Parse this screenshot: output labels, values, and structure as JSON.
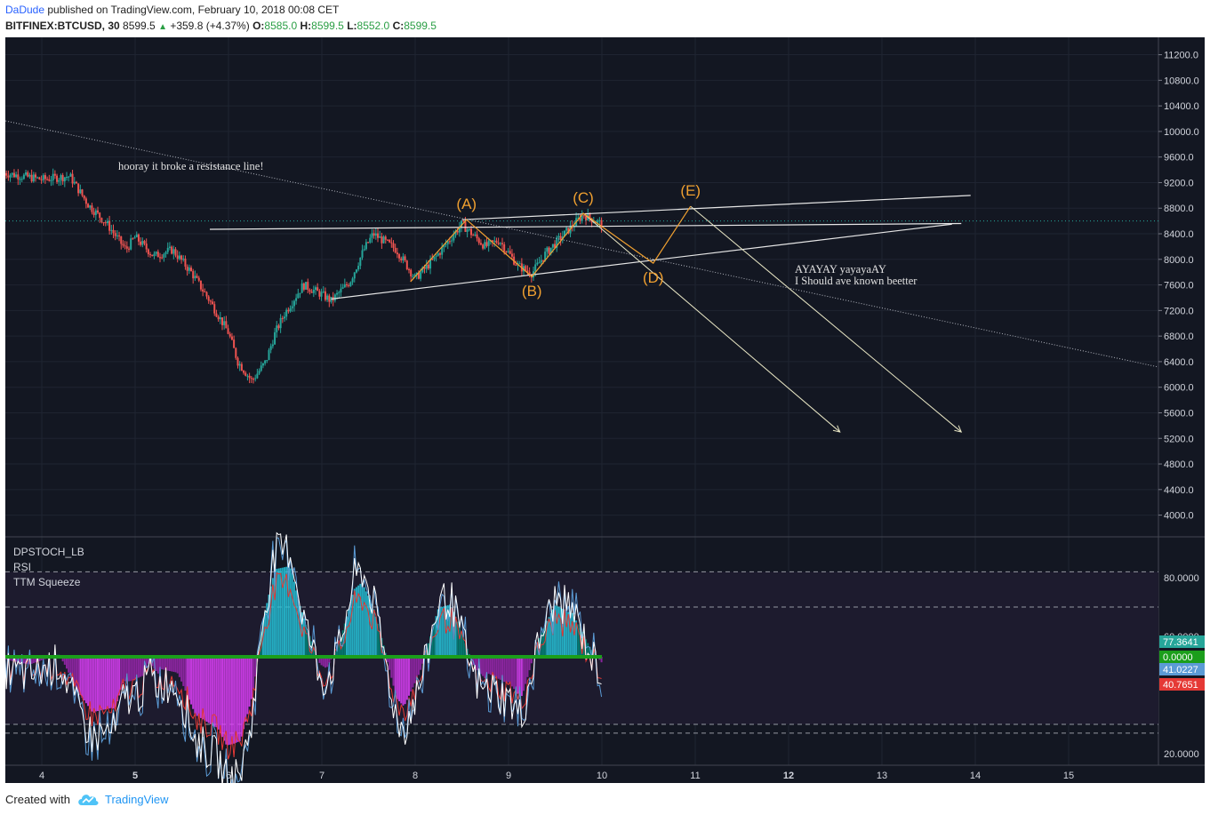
{
  "header": {
    "author": "DaDude",
    "published": "published on TradingView.com, February 10, 2018 00:08 CET",
    "symbol": "BITFINEX:BTCUSD, 30",
    "last": "8599.5",
    "change": "+359.8 (+4.37%)",
    "o_label": "O:",
    "o_value": "8585.0",
    "h_label": "H:",
    "h_value": "8599.5",
    "l_label": "L:",
    "l_value": "8552.0",
    "c_label": "C:",
    "c_value": "8599.5",
    "up_color": "#2a9e44"
  },
  "footer": {
    "created_with": "Created with",
    "brand": "TradingView"
  },
  "indicators": {
    "labels": [
      "DPSTOCH_LB",
      "RSI",
      "TTM Squeeze"
    ],
    "price_tags": [
      {
        "text": "77.3641",
        "color": "#26a69a"
      },
      {
        "text": "0.0000",
        "color": "#1b9e1b"
      },
      {
        "text": "41.0227",
        "color": "#5b9bd5"
      },
      {
        "text": "40.7651",
        "color": "#e53935"
      }
    ]
  },
  "chart_data": {
    "type": "candlestick",
    "symbol": "BITFINEX:BTCUSD",
    "interval": "30",
    "x_axis": {
      "ticks": [
        "4",
        "5",
        "6",
        "7",
        "8",
        "9",
        "10",
        "11",
        "12",
        "13",
        "14",
        "15"
      ],
      "bold_ticks": [
        "5",
        "12"
      ]
    },
    "y_axis": {
      "range": [
        3700,
        11500
      ],
      "ticks": [
        "11200.0",
        "10800.0",
        "10400.0",
        "10000.0",
        "9600.0",
        "9200.0",
        "8800.0",
        "8400.0",
        "8000.0",
        "7600.0",
        "7200.0",
        "6800.0",
        "6400.0",
        "6000.0",
        "5600.0",
        "5200.0",
        "4800.0",
        "4400.0",
        "4000.0"
      ]
    },
    "price_path": [
      [
        3.6,
        9350
      ],
      [
        4.0,
        9250
      ],
      [
        4.3,
        9300
      ],
      [
        4.5,
        8850
      ],
      [
        4.7,
        8550
      ],
      [
        4.9,
        8150
      ],
      [
        5.0,
        8350
      ],
      [
        5.2,
        8050
      ],
      [
        5.4,
        8150
      ],
      [
        5.6,
        7800
      ],
      [
        5.8,
        7350
      ],
      [
        6.0,
        6850
      ],
      [
        6.1,
        6400
      ],
      [
        6.25,
        6100
      ],
      [
        6.4,
        6400
      ],
      [
        6.5,
        6850
      ],
      [
        6.6,
        7150
      ],
      [
        6.8,
        7600
      ],
      [
        7.0,
        7450
      ],
      [
        7.1,
        7350
      ],
      [
        7.3,
        7650
      ],
      [
        7.45,
        8150
      ],
      [
        7.55,
        8400
      ],
      [
        7.8,
        8150
      ],
      [
        8.0,
        7700
      ],
      [
        8.2,
        8000
      ],
      [
        8.5,
        8550
      ],
      [
        8.75,
        8200
      ],
      [
        8.9,
        8300
      ],
      [
        9.1,
        7900
      ],
      [
        9.25,
        7780
      ],
      [
        9.4,
        8100
      ],
      [
        9.6,
        8400
      ],
      [
        9.8,
        8700
      ],
      [
        10.0,
        8550
      ]
    ],
    "sample_candles": [
      {
        "x": 4.25,
        "o": 9300,
        "h": 9450,
        "l": 9150,
        "c": 9200
      },
      {
        "x": 5.0,
        "o": 8250,
        "h": 8450,
        "l": 8100,
        "c": 8350
      },
      {
        "x": 5.5,
        "o": 7900,
        "h": 8100,
        "l": 7750,
        "c": 7850
      },
      {
        "x": 6.25,
        "o": 6200,
        "h": 6350,
        "l": 6000,
        "c": 6100
      },
      {
        "x": 6.7,
        "o": 7200,
        "h": 7450,
        "l": 7050,
        "c": 7400
      },
      {
        "x": 7.55,
        "o": 8300,
        "h": 8500,
        "l": 8150,
        "c": 8400
      },
      {
        "x": 8.5,
        "o": 8450,
        "h": 8650,
        "l": 8350,
        "c": 8550
      },
      {
        "x": 9.25,
        "o": 7850,
        "h": 7950,
        "l": 7720,
        "c": 7800
      },
      {
        "x": 9.8,
        "o": 8600,
        "h": 8750,
        "l": 8500,
        "c": 8700
      },
      {
        "x": 10.0,
        "o": 8585,
        "h": 8599.5,
        "l": 8552,
        "c": 8599.5
      }
    ],
    "last_price": 8599.5,
    "wave_labels": [
      {
        "text": "(A)",
        "x": 8.55,
        "y": 8620
      },
      {
        "text": "(B)",
        "x": 9.25,
        "y": 7730
      },
      {
        "text": "(C)",
        "x": 9.8,
        "y": 8720
      },
      {
        "text": "(D)",
        "x": 10.55,
        "y": 7940
      },
      {
        "text": "(E)",
        "x": 10.95,
        "y": 8830
      }
    ],
    "annotations": [
      {
        "text": "hooray it broke a resistance line!"
      },
      {
        "text": "AYAYAY yayayaAY"
      },
      {
        "text": "I Should ave known beetter"
      }
    ],
    "trendlines": [
      {
        "style": "solid",
        "from": [
          5.8,
          8470
        ],
        "to": [
          13.85,
          8560
        ]
      },
      {
        "style": "solid",
        "from": [
          7.1,
          7380
        ],
        "to": [
          13.75,
          8550
        ]
      },
      {
        "style": "solid",
        "from": [
          8.5,
          8620
        ],
        "to": [
          13.95,
          9000
        ]
      },
      {
        "style": "dotted",
        "from": [
          3.5,
          10200
        ],
        "to": [
          15.95,
          6320
        ]
      },
      {
        "style": "arrow",
        "from": [
          9.8,
          8720
        ],
        "to": [
          12.55,
          5300
        ]
      },
      {
        "style": "arrow",
        "from": [
          10.95,
          8830
        ],
        "to": [
          13.85,
          5300
        ]
      }
    ],
    "lower_panel": {
      "name": "DPSTOCH_LB / RSI / TTM Squeeze",
      "y_axis_ticks": [
        "80.0000",
        "60.0000",
        "20.0000"
      ],
      "levels": [
        82,
        70,
        30,
        27
      ],
      "values": {
        "rsi": 77.3641,
        "squeeze": 0.0,
        "k": 41.0227,
        "d": 40.7651
      }
    }
  }
}
